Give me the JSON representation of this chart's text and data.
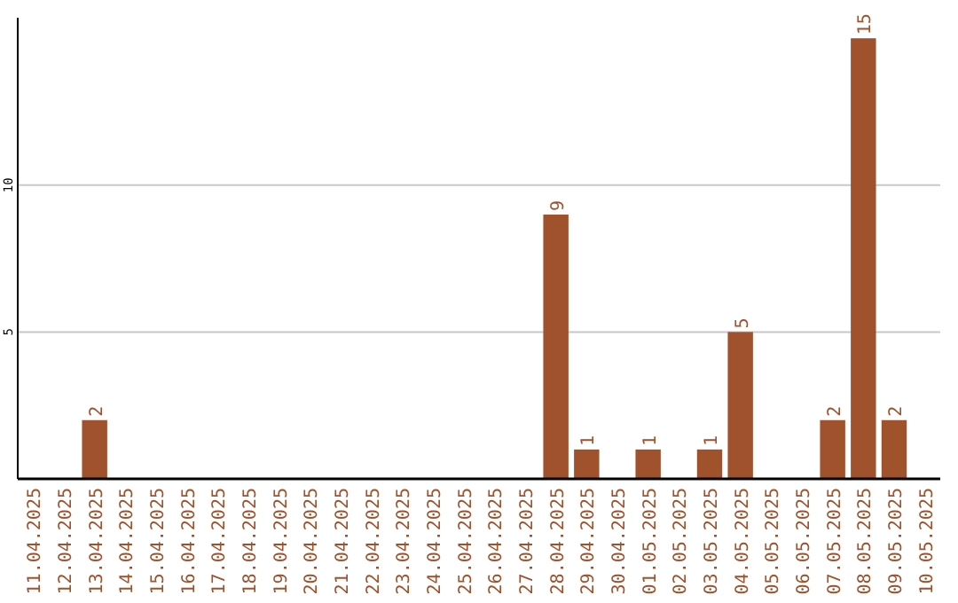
{
  "chart_data": {
    "type": "bar",
    "categories": [
      "11.04.2025",
      "12.04.2025",
      "13.04.2025",
      "14.04.2025",
      "15.04.2025",
      "16.04.2025",
      "17.04.2025",
      "18.04.2025",
      "19.04.2025",
      "20.04.2025",
      "21.04.2025",
      "22.04.2025",
      "23.04.2025",
      "24.04.2025",
      "25.04.2025",
      "26.04.2025",
      "27.04.2025",
      "28.04.2025",
      "29.04.2025",
      "30.04.2025",
      "01.05.2025",
      "02.05.2025",
      "03.05.2025",
      "04.05.2025",
      "05.05.2025",
      "06.05.2025",
      "07.05.2025",
      "08.05.2025",
      "09.05.2025",
      "10.05.2025"
    ],
    "values": [
      0,
      0,
      2,
      0,
      0,
      0,
      0,
      0,
      0,
      0,
      0,
      0,
      0,
      0,
      0,
      0,
      0,
      9,
      1,
      0,
      1,
      0,
      1,
      5,
      0,
      0,
      2,
      15,
      2,
      0
    ],
    "value_labels": [
      null,
      null,
      "2",
      null,
      null,
      null,
      null,
      null,
      null,
      null,
      null,
      null,
      null,
      null,
      null,
      null,
      null,
      "9",
      "1",
      null,
      "1",
      null,
      "1",
      "5",
      null,
      null,
      "2",
      "15",
      "2",
      null
    ],
    "color": "#a0522d",
    "ylim": [
      0,
      15.7
    ],
    "yticks": [
      5,
      10
    ],
    "grid": "y"
  }
}
